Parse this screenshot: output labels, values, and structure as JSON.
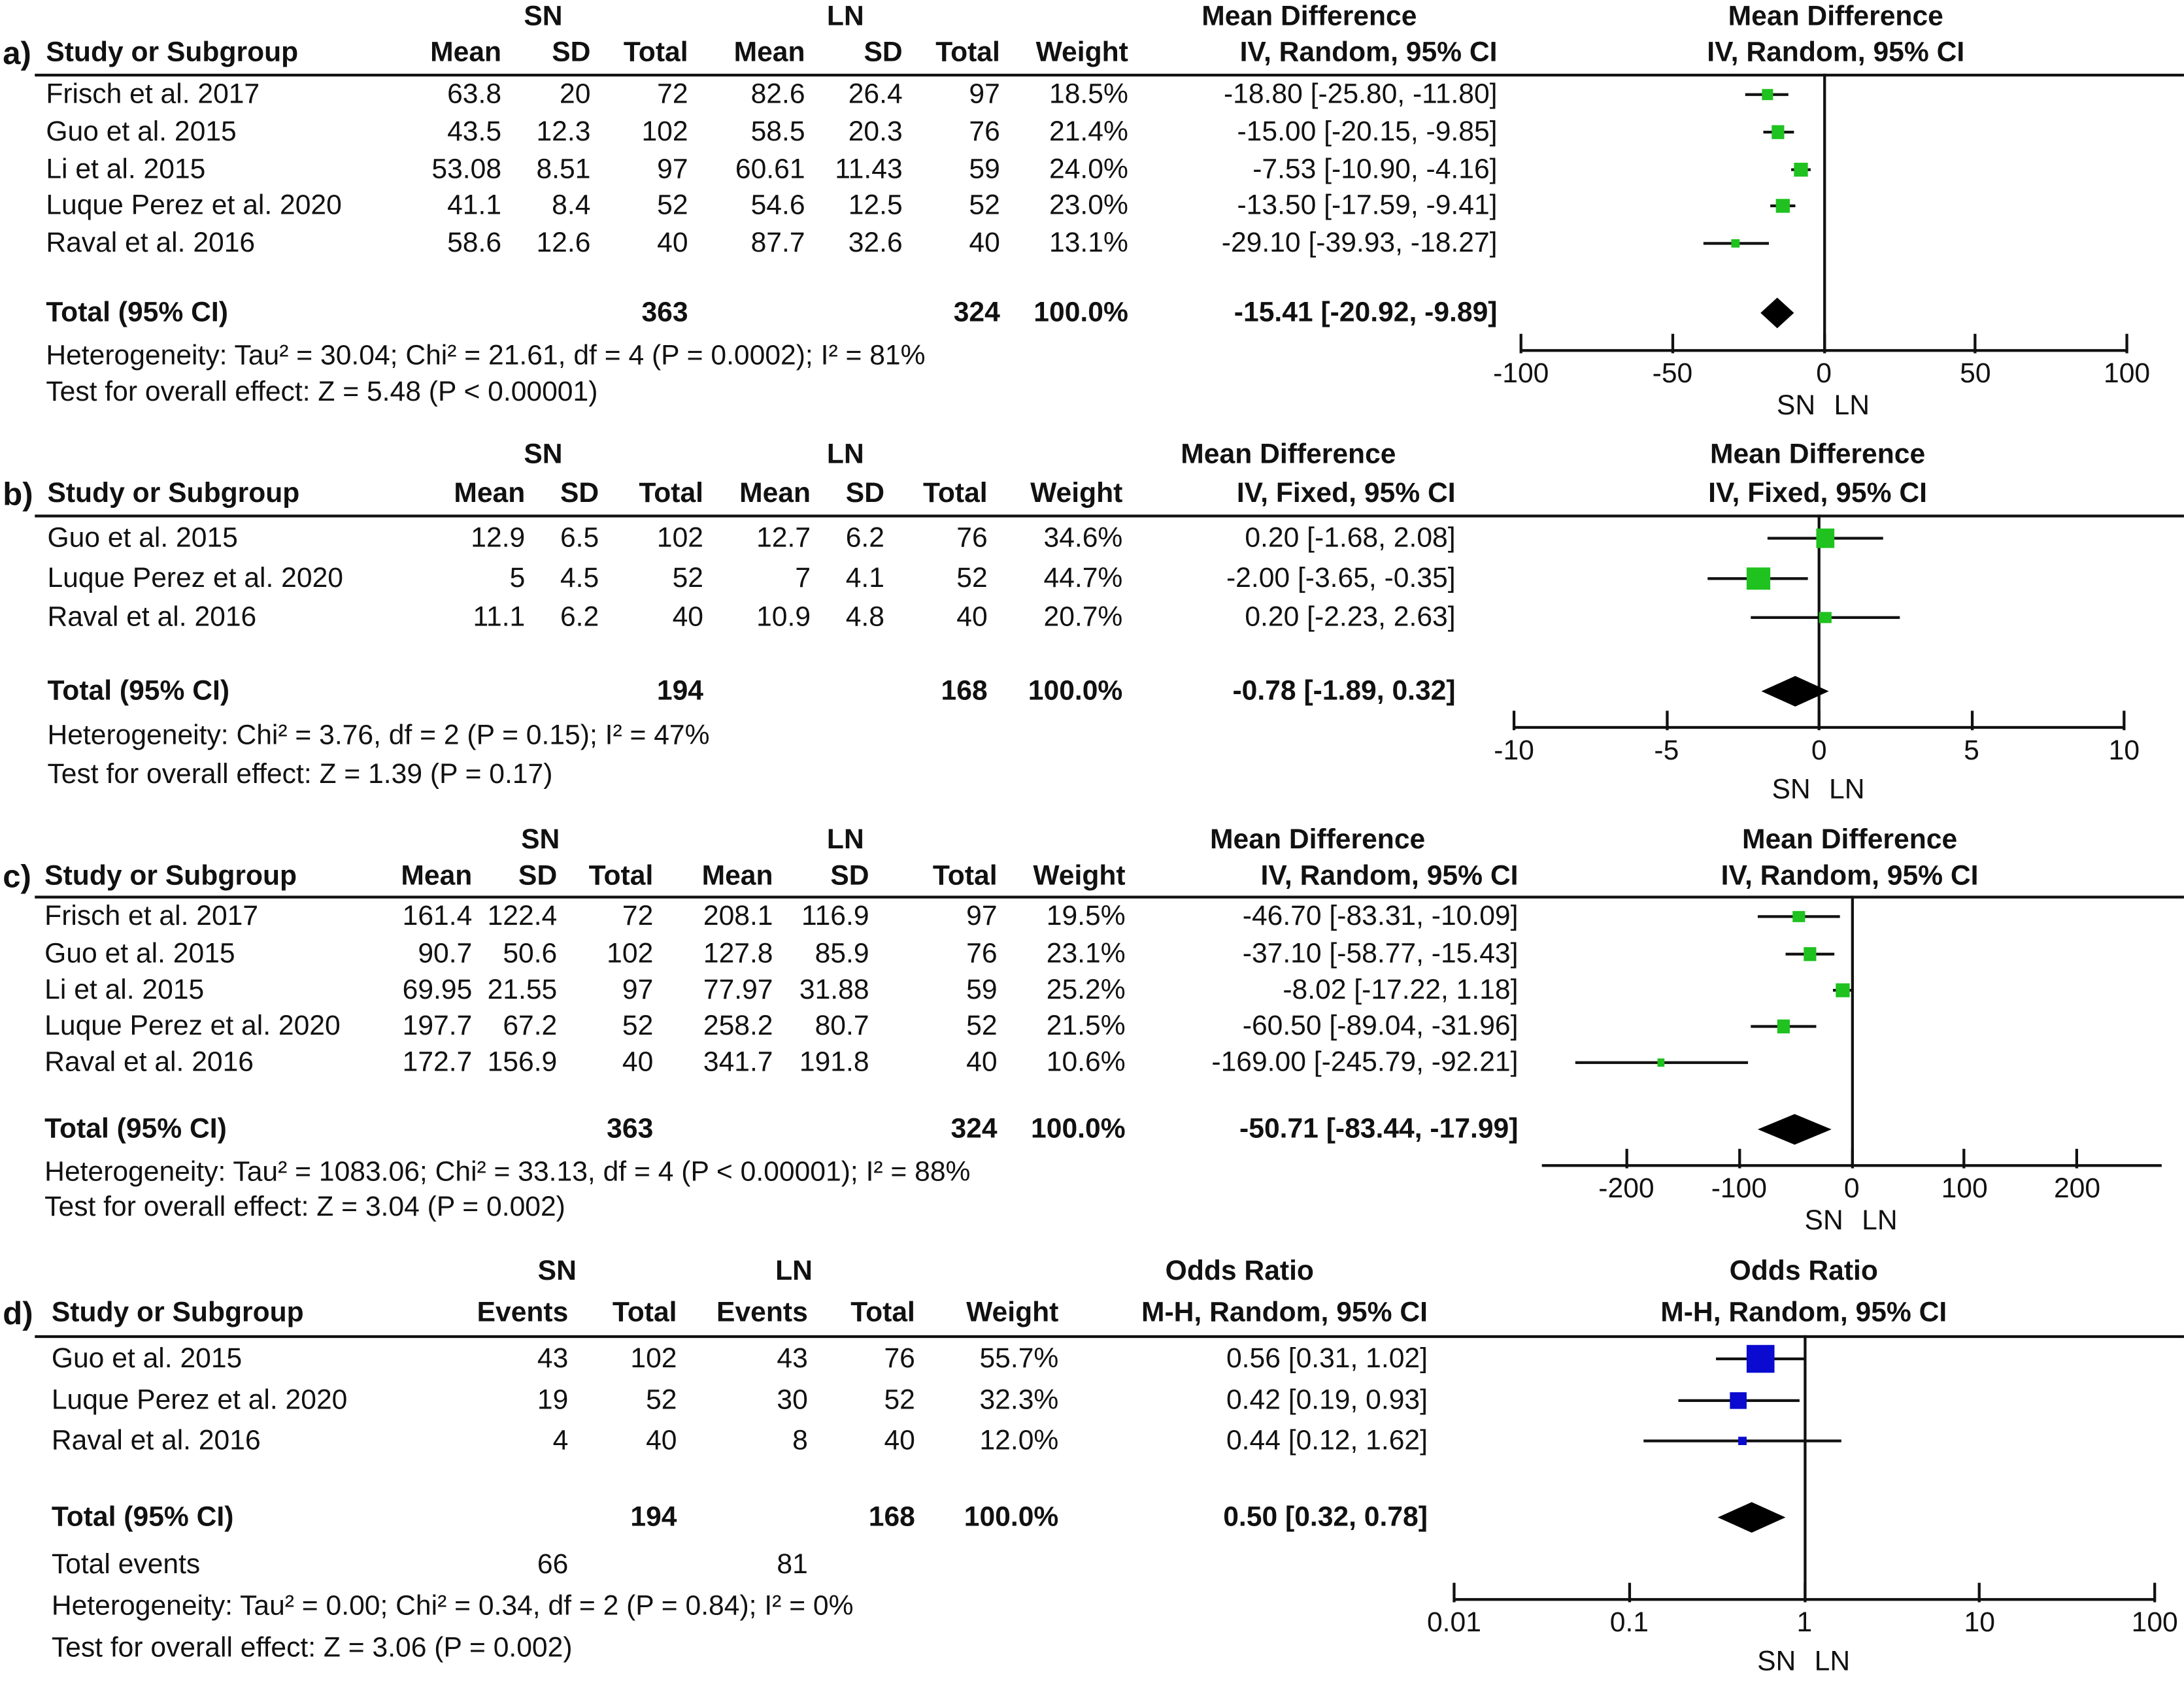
{
  "panels": [
    {
      "label": "a)",
      "group_labels": [
        "SN",
        "LN"
      ],
      "method_title": "Mean Difference",
      "method_sub": "IV, Random, 95% CI",
      "plot_title": "Mean Difference",
      "plot_sub": "IV, Random, 95% CI",
      "columns": [
        "Study or Subgroup",
        "Mean",
        "SD",
        "Total",
        "Mean",
        "SD",
        "Total",
        "Weight",
        "IV, Random, 95% CI"
      ],
      "rows": [
        {
          "study": "Frisch et al. 2017",
          "cells": [
            "63.8",
            "20",
            "72",
            "82.6",
            "26.4",
            "97",
            "18.5%",
            "-18.80 [-25.80, -11.80]"
          ]
        },
        {
          "study": "Guo et al. 2015",
          "cells": [
            "43.5",
            "12.3",
            "102",
            "58.5",
            "20.3",
            "76",
            "21.4%",
            "-15.00 [-20.15, -9.85]"
          ]
        },
        {
          "study": "Li et al. 2015",
          "cells": [
            "53.08",
            "8.51",
            "97",
            "60.61",
            "11.43",
            "59",
            "24.0%",
            "-7.53 [-10.90, -4.16]"
          ]
        },
        {
          "study": "Luque Perez et al. 2020",
          "cells": [
            "41.1",
            "8.4",
            "52",
            "54.6",
            "12.5",
            "52",
            "23.0%",
            "-13.50 [-17.59, -9.41]"
          ]
        },
        {
          "study": "Raval et al. 2016",
          "cells": [
            "58.6",
            "12.6",
            "40",
            "87.7",
            "32.6",
            "40",
            "13.1%",
            "-29.10 [-39.93, -18.27]"
          ]
        }
      ],
      "total": {
        "study": "Total (95% CI)",
        "cells": [
          "",
          "",
          "363",
          "",
          "",
          "324",
          "100.0%",
          "-15.41 [-20.92, -9.89]"
        ]
      },
      "extra_rows": [],
      "heterogeneity": "Heterogeneity: Tau² = 30.04; Chi² = 21.61, df = 4 (P = 0.0002); I² = 81%",
      "overall_effect": "Test for overall effect: Z = 5.48 (P < 0.00001)",
      "favours": [
        "SN",
        "LN"
      ]
    },
    {
      "label": "b)",
      "group_labels": [
        "SN",
        "LN"
      ],
      "method_title": "Mean Difference",
      "method_sub": "IV, Fixed, 95% CI",
      "plot_title": "Mean Difference",
      "plot_sub": "IV, Fixed, 95% CI",
      "columns": [
        "Study or Subgroup",
        "Mean",
        "SD",
        "Total",
        "Mean",
        "SD",
        "Total",
        "Weight",
        "IV, Fixed, 95% CI"
      ],
      "rows": [
        {
          "study": "Guo et al. 2015",
          "cells": [
            "12.9",
            "6.5",
            "102",
            "12.7",
            "6.2",
            "76",
            "34.6%",
            "0.20 [-1.68, 2.08]"
          ]
        },
        {
          "study": "Luque Perez et al. 2020",
          "cells": [
            "5",
            "4.5",
            "52",
            "7",
            "4.1",
            "52",
            "44.7%",
            "-2.00 [-3.65, -0.35]"
          ]
        },
        {
          "study": "Raval et al. 2016",
          "cells": [
            "11.1",
            "6.2",
            "40",
            "10.9",
            "4.8",
            "40",
            "20.7%",
            "0.20 [-2.23, 2.63]"
          ]
        }
      ],
      "total": {
        "study": "Total (95% CI)",
        "cells": [
          "",
          "",
          "194",
          "",
          "",
          "168",
          "100.0%",
          "-0.78 [-1.89, 0.32]"
        ]
      },
      "extra_rows": [],
      "heterogeneity": "Heterogeneity: Chi² = 3.76, df = 2 (P = 0.15); I² = 47%",
      "overall_effect": "Test for overall effect: Z = 1.39 (P = 0.17)",
      "favours": [
        "SN",
        "LN"
      ]
    },
    {
      "label": "c)",
      "group_labels": [
        "SN",
        "LN"
      ],
      "method_title": "Mean Difference",
      "method_sub": "IV, Random, 95% CI",
      "plot_title": "Mean Difference",
      "plot_sub": "IV, Random, 95% CI",
      "columns": [
        "Study or Subgroup",
        "Mean",
        "SD",
        "Total",
        "Mean",
        "SD",
        "Total",
        "Weight",
        "IV, Random, 95% CI"
      ],
      "rows": [
        {
          "study": "Frisch et al. 2017",
          "cells": [
            "161.4",
            "122.4",
            "72",
            "208.1",
            "116.9",
            "97",
            "19.5%",
            "-46.70 [-83.31, -10.09]"
          ]
        },
        {
          "study": "Guo et al. 2015",
          "cells": [
            "90.7",
            "50.6",
            "102",
            "127.8",
            "85.9",
            "76",
            "23.1%",
            "-37.10 [-58.77, -15.43]"
          ]
        },
        {
          "study": "Li et al. 2015",
          "cells": [
            "69.95",
            "21.55",
            "97",
            "77.97",
            "31.88",
            "59",
            "25.2%",
            "-8.02 [-17.22, 1.18]"
          ]
        },
        {
          "study": "Luque Perez et al. 2020",
          "cells": [
            "197.7",
            "67.2",
            "52",
            "258.2",
            "80.7",
            "52",
            "21.5%",
            "-60.50 [-89.04, -31.96]"
          ]
        },
        {
          "study": "Raval et al. 2016",
          "cells": [
            "172.7",
            "156.9",
            "40",
            "341.7",
            "191.8",
            "40",
            "10.6%",
            "-169.00 [-245.79, -92.21]"
          ]
        }
      ],
      "total": {
        "study": "Total (95% CI)",
        "cells": [
          "",
          "",
          "363",
          "",
          "",
          "324",
          "100.0%",
          "-50.71 [-83.44, -17.99]"
        ]
      },
      "extra_rows": [],
      "heterogeneity": "Heterogeneity: Tau² = 1083.06; Chi² = 33.13, df = 4 (P < 0.00001); I² = 88%",
      "overall_effect": "Test for overall effect: Z = 3.04 (P = 0.002)",
      "favours": [
        "SN",
        "LN"
      ]
    },
    {
      "label": "d)",
      "group_labels": [
        "SN",
        "LN"
      ],
      "method_title": "Odds Ratio",
      "method_sub": "M-H, Random, 95% CI",
      "plot_title": "Odds Ratio",
      "plot_sub": "M-H, Random, 95% CI",
      "columns": [
        "Study or Subgroup",
        "Events",
        "Total",
        "Events",
        "Total",
        "Weight",
        "M-H, Random, 95% CI"
      ],
      "rows": [
        {
          "study": "Guo et al. 2015",
          "cells": [
            "43",
            "102",
            "43",
            "76",
            "55.7%",
            "0.56 [0.31, 1.02]"
          ]
        },
        {
          "study": "Luque Perez et al. 2020",
          "cells": [
            "19",
            "52",
            "30",
            "52",
            "32.3%",
            "0.42 [0.19, 0.93]"
          ]
        },
        {
          "study": "Raval et al. 2016",
          "cells": [
            "4",
            "40",
            "8",
            "40",
            "12.0%",
            "0.44 [0.12, 1.62]"
          ]
        }
      ],
      "total": {
        "study": "Total (95% CI)",
        "cells": [
          "",
          "194",
          "",
          "168",
          "100.0%",
          "0.50 [0.32, 0.78]"
        ]
      },
      "extra_rows": [
        {
          "study": "Total events",
          "cells": [
            "66",
            "",
            "81",
            "",
            "",
            ""
          ]
        }
      ],
      "heterogeneity": "Heterogeneity: Tau² = 0.00; Chi² = 0.34, df = 2 (P = 0.84); I² = 0%",
      "overall_effect": "Test for overall effect: Z = 3.06 (P = 0.002)",
      "favours": [
        "SN",
        "LN"
      ]
    }
  ],
  "colors": {
    "marker_md": "#1fc21f",
    "marker_or": "#0a0ad0",
    "diamond": "#000000",
    "lines": "#111111"
  },
  "chart_data": [
    {
      "type": "scatter",
      "subtype": "forest",
      "scale": "linear",
      "xlim": [
        -100,
        100
      ],
      "ticks": [
        -100,
        -50,
        0,
        50,
        100
      ],
      "tick_labels": [
        "-100",
        "-50",
        "0",
        "50",
        "100"
      ],
      "xlabel_left": "SN",
      "xlabel_right": "LN",
      "estimates": [
        -18.8,
        -15.0,
        -7.53,
        -13.5,
        -29.1
      ],
      "lower": [
        -25.8,
        -20.15,
        -10.9,
        -17.59,
        -39.93
      ],
      "upper": [
        -11.8,
        -9.85,
        -4.16,
        -9.41,
        -18.27
      ],
      "weights": [
        18.5,
        21.4,
        24.0,
        23.0,
        13.1
      ],
      "pooled": {
        "estimate": -15.41,
        "lower": -20.92,
        "upper": -9.89
      },
      "marker_color": "#1fc21f"
    },
    {
      "type": "scatter",
      "subtype": "forest",
      "scale": "linear",
      "xlim": [
        -10,
        10
      ],
      "ticks": [
        -10,
        -5,
        0,
        5,
        10
      ],
      "tick_labels": [
        "-10",
        "-5",
        "0",
        "5",
        "10"
      ],
      "xlabel_left": "SN",
      "xlabel_right": "LN",
      "estimates": [
        0.2,
        -2.0,
        0.2
      ],
      "lower": [
        -1.68,
        -3.65,
        -2.23
      ],
      "upper": [
        2.08,
        -0.35,
        2.63
      ],
      "weights": [
        34.6,
        44.7,
        20.7
      ],
      "pooled": {
        "estimate": -0.78,
        "lower": -1.89,
        "upper": 0.32
      },
      "marker_color": "#1fc21f"
    },
    {
      "type": "scatter",
      "subtype": "forest",
      "scale": "linear",
      "xlim": [
        -275,
        275
      ],
      "ticks": [
        -200,
        -100,
        0,
        100,
        200
      ],
      "tick_labels": [
        "-200",
        "-100",
        "0",
        "100",
        "200"
      ],
      "xlabel_left": "SN",
      "xlabel_right": "LN",
      "estimates": [
        -46.7,
        -37.1,
        -8.02,
        -60.5,
        -169.0
      ],
      "lower": [
        -83.31,
        -58.77,
        -17.22,
        -89.04,
        -245.79
      ],
      "upper": [
        -10.09,
        -15.43,
        1.18,
        -31.96,
        -92.21
      ],
      "weights": [
        19.5,
        23.1,
        25.2,
        21.5,
        10.6
      ],
      "pooled": {
        "estimate": -50.71,
        "lower": -83.44,
        "upper": -17.99
      },
      "marker_color": "#1fc21f"
    },
    {
      "type": "scatter",
      "subtype": "forest",
      "scale": "log",
      "xlim": [
        0.01,
        100
      ],
      "ticks": [
        0.01,
        0.1,
        1,
        10,
        100
      ],
      "tick_labels": [
        "0.01",
        "0.1",
        "1",
        "10",
        "100"
      ],
      "xlabel_left": "SN",
      "xlabel_right": "LN",
      "estimates": [
        0.56,
        0.42,
        0.44
      ],
      "lower": [
        0.31,
        0.19,
        0.12
      ],
      "upper": [
        1.02,
        0.93,
        1.62
      ],
      "weights": [
        55.7,
        32.3,
        12.0
      ],
      "pooled": {
        "estimate": 0.5,
        "lower": 0.32,
        "upper": 0.78
      },
      "marker_color": "#0a0ad0"
    }
  ]
}
